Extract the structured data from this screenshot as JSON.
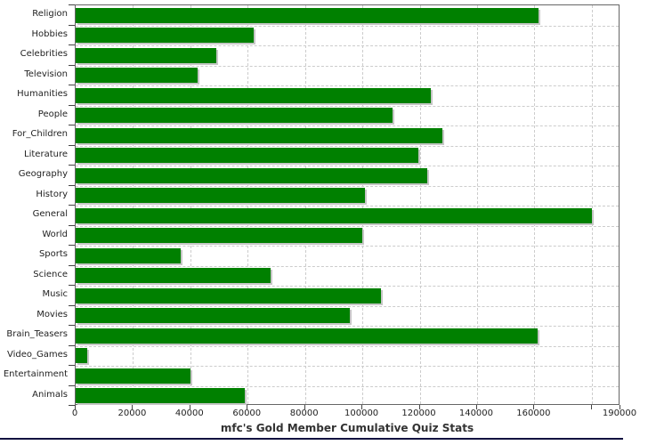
{
  "title": "mfc's Gold Member Cumulative Quiz Stats",
  "colors": {
    "bar": "#008000",
    "bar_shadow": "#c6c6c6",
    "grid": "#cccccc",
    "plot_border": "#666666",
    "axis_text": "#222222",
    "title_text": "#333333",
    "bottom_rule": "#121240"
  },
  "chart_data": {
    "type": "bar",
    "orientation": "horizontal",
    "title": "mfc's Gold Member Cumulative Quiz Stats",
    "xlabel": "",
    "ylabel": "",
    "xlim": [
      0,
      190000
    ],
    "grid": true,
    "categories": [
      "Religion",
      "Hobbies",
      "Celebrities",
      "Television",
      "Humanities",
      "People",
      "For_Children",
      "Literature",
      "Geography",
      "History",
      "General",
      "World",
      "Sports",
      "Science",
      "Music",
      "Movies",
      "Brain_Teasers",
      "Video_Games",
      "Entertainment",
      "Animals"
    ],
    "values": [
      161500,
      62000,
      49000,
      42500,
      124000,
      110500,
      128000,
      119500,
      122500,
      101000,
      180000,
      100000,
      36500,
      68000,
      106500,
      95500,
      161000,
      4000,
      40000,
      59000
    ],
    "x_ticks": [
      {
        "value": 0,
        "label": "0"
      },
      {
        "value": 20000,
        "label": "20000"
      },
      {
        "value": 40000,
        "label": "40000"
      },
      {
        "value": 60000,
        "label": "60000"
      },
      {
        "value": 80000,
        "label": "80000"
      },
      {
        "value": 100000,
        "label": "100000"
      },
      {
        "value": 120000,
        "label": "120000"
      },
      {
        "value": 140000,
        "label": "140000"
      },
      {
        "value": 160000,
        "label": "160000"
      },
      {
        "value": 180000,
        "label": ""
      },
      {
        "value": 190000,
        "label": "190000"
      }
    ]
  }
}
